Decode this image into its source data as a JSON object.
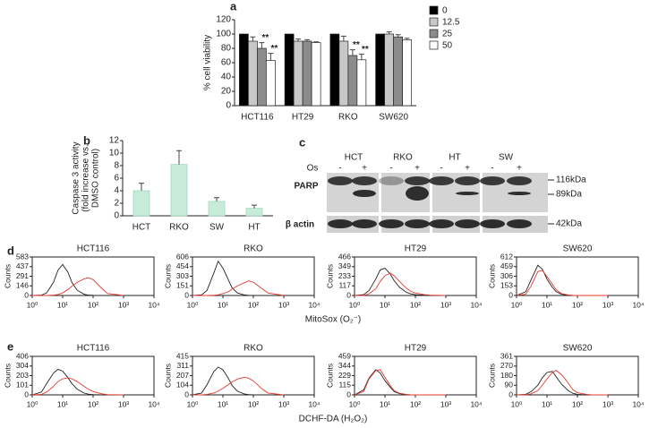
{
  "chart_data": [
    {
      "type": "bar",
      "panel": "a",
      "ylabel": "% cell viability",
      "categories": [
        "HCT116",
        "HT29",
        "RKO",
        "SW620"
      ],
      "series": [
        {
          "name": "0",
          "color": "#000000",
          "values": [
            100,
            100,
            100,
            100
          ]
        },
        {
          "name": "12.5",
          "color": "#c8c8c8",
          "values": [
            90,
            90,
            90,
            100
          ],
          "errors": [
            6,
            3,
            7,
            3
          ]
        },
        {
          "name": "25",
          "color": "#8c8c8c",
          "values": [
            80,
            90,
            70,
            96
          ],
          "errors": [
            8,
            2,
            8,
            3
          ]
        },
        {
          "name": "50",
          "color": "#ffffff",
          "values": [
            63,
            88,
            64,
            92
          ],
          "errors": [
            10,
            1,
            8,
            2
          ]
        }
      ],
      "ylim": [
        0,
        120
      ],
      "yticks": [
        0,
        20,
        40,
        60,
        80,
        100,
        120
      ],
      "annotations": [
        "**",
        "**",
        "**",
        "**"
      ],
      "legend": "right"
    },
    {
      "type": "bar",
      "panel": "b",
      "ylabel": [
        "Caspase 3 activity",
        "(fold increase vs.",
        "DMSO control)"
      ],
      "categories": [
        "HCT",
        "RKO",
        "SW",
        "HT"
      ],
      "values": [
        4,
        8.2,
        2.3,
        1.2
      ],
      "errors": [
        1.2,
        2.2,
        0.6,
        0.5
      ],
      "color": "#c6ecd9",
      "ylim": [
        0,
        12
      ],
      "yticks": [
        0,
        2,
        4,
        6,
        8,
        10,
        12
      ]
    },
    {
      "type": "line",
      "panel": "d",
      "title": "HCT116",
      "ylabel": "Counts",
      "xlabel": "MitoSox (O₂⁻)",
      "xscale": "log",
      "xlim": [
        1,
        10000
      ],
      "xticks": [
        {
          "value": 1,
          "label": "10⁰"
        },
        {
          "value": 10,
          "label": "10¹"
        },
        {
          "value": 100,
          "label": "10²"
        },
        {
          "value": 1000,
          "label": "10³"
        },
        {
          "value": 10000,
          "label": "10⁴"
        }
      ],
      "ylim": [
        0,
        583
      ],
      "yticks": [
        0,
        146,
        291,
        437,
        583
      ],
      "x": [
        1,
        2,
        3,
        5,
        7,
        10,
        15,
        20,
        30,
        50,
        70,
        100,
        200,
        300,
        1000
      ],
      "series": [
        {
          "color": "#222222",
          "values": [
            0,
            5,
            40,
            200,
            380,
            470,
            350,
            200,
            80,
            20,
            5,
            2,
            0,
            0,
            0
          ]
        },
        {
          "color": "#e8382e",
          "values": [
            0,
            0,
            0,
            5,
            15,
            40,
            90,
            140,
            200,
            250,
            270,
            240,
            100,
            30,
            0
          ]
        }
      ]
    },
    {
      "type": "line",
      "title": "RKO",
      "ylabel": "Counts",
      "xscale": "log",
      "xlim": [
        1,
        10000
      ],
      "xticks": [
        {
          "value": 1,
          "label": "10⁰"
        },
        {
          "value": 10,
          "label": "10¹"
        },
        {
          "value": 100,
          "label": "10²"
        },
        {
          "value": 1000,
          "label": "10³"
        },
        {
          "value": 10000,
          "label": "10⁴"
        }
      ],
      "ylim": [
        0,
        606
      ],
      "yticks": [
        0,
        151,
        303,
        454,
        606
      ],
      "x": [
        1,
        2,
        3,
        5,
        7,
        10,
        15,
        20,
        30,
        50,
        70,
        100,
        200,
        300,
        1000
      ],
      "series": [
        {
          "color": "#222222",
          "values": [
            0,
            10,
            80,
            350,
            540,
            430,
            250,
            120,
            40,
            10,
            3,
            0,
            0,
            0,
            0
          ]
        },
        {
          "color": "#e8382e",
          "values": [
            0,
            0,
            0,
            5,
            10,
            30,
            60,
            100,
            150,
            200,
            230,
            210,
            100,
            40,
            0
          ]
        }
      ]
    },
    {
      "type": "line",
      "title": "HT29",
      "ylabel": "Counts",
      "xscale": "log",
      "xlim": [
        1,
        10000
      ],
      "xticks": [
        {
          "value": 1,
          "label": "10⁰"
        },
        {
          "value": 10,
          "label": "10¹"
        },
        {
          "value": 100,
          "label": "10²"
        },
        {
          "value": 1000,
          "label": "10³"
        },
        {
          "value": 10000,
          "label": "10⁴"
        }
      ],
      "ylim": [
        0,
        466
      ],
      "yticks": [
        0,
        117,
        233,
        349,
        466
      ],
      "x": [
        1,
        2,
        3,
        5,
        7,
        10,
        15,
        20,
        30,
        50,
        70,
        100,
        200,
        300,
        1000
      ],
      "series": [
        {
          "color": "#222222",
          "values": [
            0,
            10,
            60,
            200,
            310,
            330,
            260,
            180,
            100,
            40,
            20,
            10,
            3,
            0,
            0
          ]
        },
        {
          "color": "#e8382e",
          "values": [
            0,
            0,
            20,
            80,
            170,
            240,
            270,
            240,
            170,
            90,
            50,
            30,
            10,
            5,
            0
          ]
        }
      ]
    },
    {
      "type": "line",
      "title": "SW620",
      "ylabel": "Counts",
      "xscale": "log",
      "xlim": [
        1,
        10000
      ],
      "xticks": [
        {
          "value": 1,
          "label": "10⁰"
        },
        {
          "value": 10,
          "label": "10¹"
        },
        {
          "value": 100,
          "label": "10²"
        },
        {
          "value": 1000,
          "label": "10³"
        },
        {
          "value": 10000,
          "label": "10⁴"
        }
      ],
      "ylim": [
        0,
        612
      ],
      "yticks": [
        0,
        153,
        306,
        459,
        612
      ],
      "x": [
        1,
        2,
        3,
        5,
        7,
        10,
        15,
        20,
        30,
        50,
        70,
        100,
        200,
        300,
        1000
      ],
      "series": [
        {
          "color": "#222222",
          "values": [
            0,
            60,
            250,
            480,
            420,
            260,
            130,
            60,
            20,
            5,
            0,
            0,
            0,
            0,
            0
          ]
        },
        {
          "color": "#e8382e",
          "values": [
            0,
            20,
            150,
            380,
            400,
            300,
            180,
            90,
            30,
            8,
            2,
            0,
            0,
            0,
            0
          ]
        }
      ]
    },
    {
      "type": "line",
      "panel": "e",
      "title": "HCT116",
      "ylabel": "Counts",
      "xlabel": "DCHF-DA (H₂O₂)",
      "xscale": "log",
      "xlim": [
        1,
        10000
      ],
      "xticks": [
        {
          "value": 1,
          "label": "10⁰"
        },
        {
          "value": 10,
          "label": "10¹"
        },
        {
          "value": 100,
          "label": "10²"
        },
        {
          "value": 1000,
          "label": "10³"
        },
        {
          "value": 10000,
          "label": "10⁴"
        }
      ],
      "ylim": [
        0,
        406
      ],
      "yticks": [
        0,
        101,
        203,
        304,
        406
      ],
      "x": [
        1,
        2,
        3,
        5,
        7,
        10,
        15,
        20,
        30,
        50,
        70,
        100,
        200,
        300,
        1000
      ],
      "series": [
        {
          "color": "#222222",
          "values": [
            0,
            30,
            120,
            230,
            270,
            250,
            180,
            120,
            60,
            20,
            8,
            3,
            0,
            0,
            0
          ]
        },
        {
          "color": "#e8382e",
          "values": [
            0,
            5,
            30,
            90,
            140,
            170,
            180,
            170,
            140,
            90,
            60,
            35,
            10,
            3,
            0
          ]
        }
      ]
    },
    {
      "type": "line",
      "title": "RKO",
      "ylabel": "Counts",
      "xscale": "log",
      "xlim": [
        1,
        10000
      ],
      "xticks": [
        {
          "value": 1,
          "label": "10⁰"
        },
        {
          "value": 10,
          "label": "10¹"
        },
        {
          "value": 100,
          "label": "10²"
        },
        {
          "value": 1000,
          "label": "10³"
        },
        {
          "value": 10000,
          "label": "10⁴"
        }
      ],
      "ylim": [
        0,
        415
      ],
      "yticks": [
        0,
        104,
        207,
        311,
        415
      ],
      "x": [
        1,
        2,
        3,
        5,
        7,
        10,
        15,
        20,
        30,
        50,
        70,
        100,
        200,
        300,
        1000
      ],
      "series": [
        {
          "color": "#222222",
          "values": [
            0,
            20,
            110,
            250,
            300,
            270,
            180,
            100,
            40,
            10,
            3,
            0,
            0,
            0,
            0
          ]
        },
        {
          "color": "#e8382e",
          "values": [
            0,
            0,
            5,
            20,
            40,
            70,
            110,
            140,
            170,
            190,
            180,
            150,
            60,
            20,
            0
          ]
        }
      ]
    },
    {
      "type": "line",
      "title": "HT29",
      "ylabel": "Counts",
      "xscale": "log",
      "xlim": [
        1,
        10000
      ],
      "xticks": [
        {
          "value": 1,
          "label": "10⁰"
        },
        {
          "value": 10,
          "label": "10¹"
        },
        {
          "value": 100,
          "label": "10²"
        },
        {
          "value": 1000,
          "label": "10³"
        },
        {
          "value": 10000,
          "label": "10⁴"
        }
      ],
      "ylim": [
        0,
        459
      ],
      "yticks": [
        0,
        115,
        229,
        344,
        459
      ],
      "x": [
        1,
        2,
        3,
        5,
        7,
        10,
        15,
        20,
        30,
        50,
        70,
        100,
        200,
        300,
        1000
      ],
      "series": [
        {
          "color": "#222222",
          "values": [
            0,
            60,
            200,
            300,
            260,
            170,
            90,
            40,
            15,
            5,
            0,
            0,
            0,
            0,
            0
          ]
        },
        {
          "color": "#e8382e",
          "values": [
            0,
            40,
            190,
            290,
            300,
            210,
            110,
            50,
            20,
            5,
            0,
            0,
            0,
            0,
            0
          ]
        }
      ]
    },
    {
      "type": "line",
      "title": "SW620",
      "ylabel": "Counts",
      "xscale": "log",
      "xlim": [
        1,
        10000
      ],
      "xticks": [
        {
          "value": 1,
          "label": "10⁰"
        },
        {
          "value": 10,
          "label": "10¹"
        },
        {
          "value": 100,
          "label": "10²"
        },
        {
          "value": 1000,
          "label": "10³"
        },
        {
          "value": 10000,
          "label": "10⁴"
        }
      ],
      "ylim": [
        0,
        361
      ],
      "yticks": [
        0,
        90,
        180,
        270,
        361
      ],
      "x": [
        1,
        2,
        3,
        5,
        7,
        10,
        15,
        20,
        30,
        50,
        70,
        100,
        200,
        300,
        1000
      ],
      "series": [
        {
          "color": "#222222",
          "values": [
            0,
            5,
            30,
            90,
            160,
            210,
            220,
            170,
            100,
            40,
            15,
            5,
            0,
            0,
            0
          ]
        },
        {
          "color": "#e8382e",
          "values": [
            0,
            0,
            10,
            40,
            90,
            150,
            210,
            230,
            190,
            110,
            50,
            20,
            5,
            0,
            0
          ]
        }
      ]
    }
  ],
  "blot": {
    "panel": "c",
    "lanes": [
      "HCT",
      "RKO",
      "HT",
      "SW"
    ],
    "treatment": "Os",
    "conditions": [
      "-",
      "+",
      "-",
      "+",
      "-",
      "+",
      "-",
      "+"
    ],
    "rows": [
      "PARP",
      "β actin"
    ],
    "markers": [
      "116kDa",
      "89kDa",
      "42kDa"
    ]
  }
}
